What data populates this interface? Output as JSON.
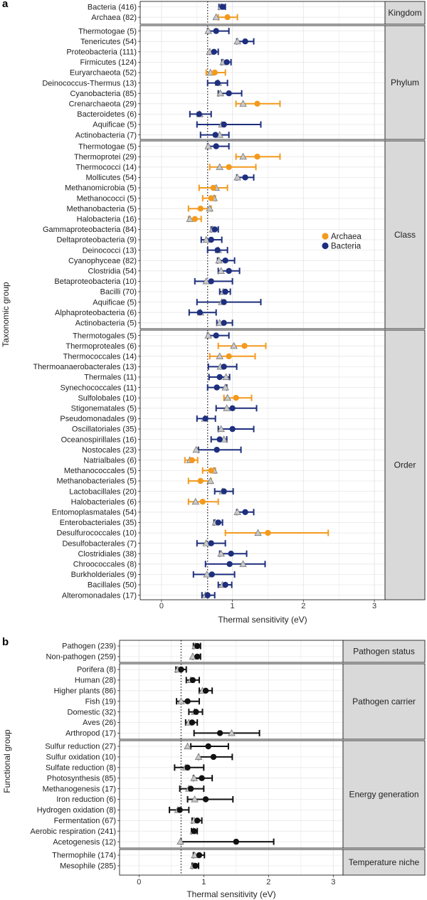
{
  "colors": {
    "archaea": "#f39a1e",
    "bacteria": "#1d2f7d",
    "black": "#111111",
    "triangle_fill": "#c8c8c8",
    "triangle_stroke": "#777777",
    "strip_bg": "#d9d9d9",
    "grid": "#e8e8e8",
    "frame": "#222222"
  },
  "chart_data": [
    {
      "type": "forest",
      "panel_label": "a",
      "xlabel": "Thermal sensitivity (eV)",
      "ylabel": "Taxonomic group",
      "xlim": [
        -0.3,
        3.15
      ],
      "xticks": [
        0,
        1,
        2,
        3
      ],
      "reference_line": 0.65,
      "legend": {
        "position": "right-center",
        "entries": [
          {
            "name": "Archaea",
            "color_key": "archaea"
          },
          {
            "name": "Bacteria",
            "color_key": "bacteria"
          }
        ]
      },
      "facets": [
        {
          "strip": "Kingdom",
          "rows": [
            {
              "label": "Bacteria (416)",
              "est": 0.86,
              "lo": 0.81,
              "hi": 0.9,
              "tri": 0.84,
              "group": "Bacteria"
            },
            {
              "label": "Archaea (82)",
              "est": 0.93,
              "lo": 0.8,
              "hi": 1.07,
              "tri": 0.77,
              "group": "Archaea"
            }
          ]
        },
        {
          "strip": "Phylum",
          "rows": [
            {
              "label": "Thermotogae (5)",
              "est": 0.77,
              "lo": 0.65,
              "hi": 0.95,
              "tri": 0.66,
              "group": "Bacteria"
            },
            {
              "label": "Tenericutes (54)",
              "est": 1.18,
              "lo": 1.06,
              "hi": 1.3,
              "tri": 1.07,
              "group": "Bacteria"
            },
            {
              "label": "Proteobacteria (111)",
              "est": 0.74,
              "lo": 0.68,
              "hi": 0.8,
              "tri": 0.68,
              "group": "Bacteria"
            },
            {
              "label": "Firmicutes (124)",
              "est": 0.92,
              "lo": 0.85,
              "hi": 0.98,
              "tri": 0.87,
              "group": "Bacteria"
            },
            {
              "label": "Euryarchaeota (52)",
              "est": 0.75,
              "lo": 0.63,
              "hi": 0.9,
              "tri": 0.69,
              "group": "Archaea"
            },
            {
              "label": "Deinococcus-Thermus (13)",
              "est": 0.79,
              "lo": 0.65,
              "hi": 0.93,
              "tri": 0.8,
              "group": "Bacteria"
            },
            {
              "label": "Cyanobacteria (85)",
              "est": 0.95,
              "lo": 0.8,
              "hi": 1.13,
              "tri": 0.83,
              "group": "Bacteria"
            },
            {
              "label": "Crenarchaeota (29)",
              "est": 1.35,
              "lo": 1.05,
              "hi": 1.67,
              "tri": 1.15,
              "group": "Archaea"
            },
            {
              "label": "Bacteroidetes (6)",
              "est": 0.53,
              "lo": 0.4,
              "hi": 0.7,
              "tri": 0.54,
              "group": "Bacteria"
            },
            {
              "label": "Aquificae (5)",
              "est": 0.88,
              "lo": 0.5,
              "hi": 1.4,
              "tri": 0.85,
              "group": "Bacteria"
            },
            {
              "label": "Actinobacteria (7)",
              "est": 0.76,
              "lo": 0.55,
              "hi": 0.95,
              "tri": 0.82,
              "group": "Bacteria"
            }
          ]
        },
        {
          "strip": "Class",
          "rows": [
            {
              "label": "Thermotogae (5)",
              "est": 0.77,
              "lo": 0.65,
              "hi": 0.95,
              "tri": 0.66,
              "group": "Bacteria"
            },
            {
              "label": "Thermoprotei (29)",
              "est": 1.35,
              "lo": 1.05,
              "hi": 1.67,
              "tri": 1.15,
              "group": "Archaea"
            },
            {
              "label": "Thermococci (14)",
              "est": 0.95,
              "lo": 0.68,
              "hi": 1.33,
              "tri": 0.82,
              "group": "Archaea"
            },
            {
              "label": "Mollicutes (54)",
              "est": 1.18,
              "lo": 1.06,
              "hi": 1.3,
              "tri": 1.07,
              "group": "Bacteria"
            },
            {
              "label": "Methanomicrobia (5)",
              "est": 0.73,
              "lo": 0.53,
              "hi": 0.93,
              "tri": 0.77,
              "group": "Archaea"
            },
            {
              "label": "Methanococci (5)",
              "est": 0.7,
              "lo": 0.58,
              "hi": 0.76,
              "tri": 0.74,
              "group": "Archaea"
            },
            {
              "label": "Methanobacteria (5)",
              "est": 0.55,
              "lo": 0.38,
              "hi": 0.7,
              "tri": 0.68,
              "group": "Archaea"
            },
            {
              "label": "Halobacteria (16)",
              "est": 0.47,
              "lo": 0.38,
              "hi": 0.56,
              "tri": 0.4,
              "group": "Archaea"
            },
            {
              "label": "Gammaproteobacteria (84)",
              "est": 0.75,
              "lo": 0.7,
              "hi": 0.8,
              "tri": 0.72,
              "group": "Bacteria"
            },
            {
              "label": "Deltaproteobacteria (9)",
              "est": 0.7,
              "lo": 0.56,
              "hi": 0.85,
              "tri": 0.63,
              "group": "Bacteria"
            },
            {
              "label": "Deinococci (13)",
              "est": 0.79,
              "lo": 0.65,
              "hi": 0.93,
              "tri": 0.8,
              "group": "Bacteria"
            },
            {
              "label": "Cyanophyceae (82)",
              "est": 0.9,
              "lo": 0.79,
              "hi": 1.03,
              "tri": 0.81,
              "group": "Bacteria"
            },
            {
              "label": "Clostridia (54)",
              "est": 0.95,
              "lo": 0.8,
              "hi": 1.1,
              "tri": 0.84,
              "group": "Bacteria"
            },
            {
              "label": "Betaproteobacteria (10)",
              "est": 0.7,
              "lo": 0.47,
              "hi": 1.0,
              "tri": 0.63,
              "group": "Bacteria"
            },
            {
              "label": "Bacilli (70)",
              "est": 0.9,
              "lo": 0.82,
              "hi": 0.97,
              "tri": 0.87,
              "group": "Bacteria"
            },
            {
              "label": "Aquificae (5)",
              "est": 0.88,
              "lo": 0.5,
              "hi": 1.4,
              "tri": 0.85,
              "group": "Bacteria"
            },
            {
              "label": "Alphaproteobacteria (6)",
              "est": 0.54,
              "lo": 0.39,
              "hi": 0.77,
              "tri": 0.55,
              "group": "Bacteria"
            },
            {
              "label": "Actinobacteria (5)",
              "est": 0.88,
              "lo": 0.78,
              "hi": 1.0,
              "tri": 0.82,
              "group": "Bacteria"
            }
          ]
        },
        {
          "strip": "Order",
          "rows": [
            {
              "label": "Thermotogales (5)",
              "est": 0.77,
              "lo": 0.65,
              "hi": 0.95,
              "tri": 0.66,
              "group": "Bacteria"
            },
            {
              "label": "Thermoproteales (6)",
              "est": 1.17,
              "lo": 0.8,
              "hi": 1.47,
              "tri": 1.02,
              "group": "Archaea"
            },
            {
              "label": "Thermococcales (14)",
              "est": 0.95,
              "lo": 0.68,
              "hi": 1.32,
              "tri": 0.82,
              "group": "Archaea"
            },
            {
              "label": "Thermoanaerobacterales (13)",
              "est": 0.88,
              "lo": 0.66,
              "hi": 1.06,
              "tri": 0.83,
              "group": "Bacteria"
            },
            {
              "label": "Thermales (11)",
              "est": 0.82,
              "lo": 0.67,
              "hi": 0.96,
              "tri": 0.91,
              "group": "Bacteria"
            },
            {
              "label": "Synechococcales (11)",
              "est": 0.78,
              "lo": 0.65,
              "hi": 0.92,
              "tri": 0.9,
              "group": "Bacteria"
            },
            {
              "label": "Sulfolobales (10)",
              "est": 1.05,
              "lo": 0.88,
              "hi": 1.27,
              "tri": 0.93,
              "group": "Archaea"
            },
            {
              "label": "Stigonematales (5)",
              "est": 1.0,
              "lo": 0.77,
              "hi": 1.34,
              "tri": 0.92,
              "group": "Bacteria"
            },
            {
              "label": "Pseudomonadales (9)",
              "est": 0.62,
              "lo": 0.5,
              "hi": 0.76,
              "tri": 0.61,
              "group": "Bacteria"
            },
            {
              "label": "Oscillatoriales (35)",
              "est": 1.0,
              "lo": 0.8,
              "hi": 1.3,
              "tri": 0.84,
              "group": "Bacteria"
            },
            {
              "label": "Oceanospirillales (16)",
              "est": 0.82,
              "lo": 0.7,
              "hi": 0.92,
              "tri": 0.88,
              "group": "Bacteria"
            },
            {
              "label": "Nostocales (23)",
              "est": 0.78,
              "lo": 0.52,
              "hi": 1.12,
              "tri": 0.49,
              "group": "Bacteria"
            },
            {
              "label": "Natrialbales (6)",
              "est": 0.43,
              "lo": 0.33,
              "hi": 0.51,
              "tri": 0.4,
              "group": "Archaea"
            },
            {
              "label": "Methanococcales (5)",
              "est": 0.7,
              "lo": 0.58,
              "hi": 0.76,
              "tri": 0.74,
              "group": "Archaea"
            },
            {
              "label": "Methanobacteriales (5)",
              "est": 0.55,
              "lo": 0.38,
              "hi": 0.7,
              "tri": 0.69,
              "group": "Archaea"
            },
            {
              "label": "Lactobacillales (20)",
              "est": 0.88,
              "lo": 0.75,
              "hi": 1.01,
              "tri": 0.86,
              "group": "Bacteria"
            },
            {
              "label": "Halobacteriales (6)",
              "est": 0.58,
              "lo": 0.38,
              "hi": 0.8,
              "tri": 0.48,
              "group": "Archaea"
            },
            {
              "label": "Entomoplasmatales (54)",
              "est": 1.18,
              "lo": 1.06,
              "hi": 1.3,
              "tri": 1.07,
              "group": "Bacteria"
            },
            {
              "label": "Enterobacteriales (35)",
              "est": 0.8,
              "lo": 0.74,
              "hi": 0.86,
              "tri": 0.76,
              "group": "Bacteria"
            },
            {
              "label": "Desulfurococcales (10)",
              "est": 1.5,
              "lo": 0.9,
              "hi": 2.35,
              "tri": 1.36,
              "group": "Archaea"
            },
            {
              "label": "Desulfobacterales (7)",
              "est": 0.7,
              "lo": 0.5,
              "hi": 0.9,
              "tri": 0.63,
              "group": "Bacteria"
            },
            {
              "label": "Clostridiales (38)",
              "est": 0.98,
              "lo": 0.82,
              "hi": 1.2,
              "tri": 0.84,
              "group": "Bacteria"
            },
            {
              "label": "Chroococcales (8)",
              "est": 0.96,
              "lo": 0.62,
              "hi": 1.46,
              "tri": 1.15,
              "group": "Bacteria"
            },
            {
              "label": "Burkholderiales (9)",
              "est": 0.71,
              "lo": 0.45,
              "hi": 1.03,
              "tri": 0.64,
              "group": "Bacteria"
            },
            {
              "label": "Bacillales (50)",
              "est": 0.9,
              "lo": 0.8,
              "hi": 0.99,
              "tri": 0.86,
              "group": "Bacteria"
            },
            {
              "label": "Alteromonadales (17)",
              "est": 0.65,
              "lo": 0.57,
              "hi": 0.75,
              "tri": 0.62,
              "group": "Bacteria"
            }
          ]
        }
      ]
    },
    {
      "type": "forest",
      "panel_label": "b",
      "xlabel": "Thermal sensitivity (eV)",
      "ylabel": "Functional group",
      "xlim": [
        -0.3,
        3.15
      ],
      "xticks": [
        0,
        1,
        2,
        3
      ],
      "reference_line": 0.65,
      "facets": [
        {
          "strip": "Pathogen status",
          "rows": [
            {
              "label": "Pathogen (239)",
              "est": 0.9,
              "lo": 0.84,
              "hi": 0.95,
              "tri": 0.87
            },
            {
              "label": "Non-pathogen (259)",
              "est": 0.9,
              "lo": 0.83,
              "hi": 0.95,
              "tri": 0.83
            }
          ]
        },
        {
          "strip": "Pathogen carrier",
          "rows": [
            {
              "label": "Porifera (8)",
              "est": 0.65,
              "lo": 0.57,
              "hi": 0.73,
              "tri": 0.6
            },
            {
              "label": "Human (28)",
              "est": 0.83,
              "lo": 0.73,
              "hi": 0.93,
              "tri": 0.8
            },
            {
              "label": "Higher plants (86)",
              "est": 1.03,
              "lo": 0.93,
              "hi": 1.13,
              "tri": 0.98
            },
            {
              "label": "Fish (19)",
              "est": 0.75,
              "lo": 0.58,
              "hi": 0.93,
              "tri": 0.65
            },
            {
              "label": "Domestic (32)",
              "est": 0.88,
              "lo": 0.77,
              "hi": 0.98,
              "tri": 0.86
            },
            {
              "label": "Aves (26)",
              "est": 0.82,
              "lo": 0.72,
              "hi": 0.9,
              "tri": 0.77
            },
            {
              "label": "Arthropod (17)",
              "est": 1.25,
              "lo": 0.85,
              "hi": 1.86,
              "tri": 1.43
            }
          ]
        },
        {
          "strip": "Energy generation",
          "rows": [
            {
              "label": "Sulfur reduction (27)",
              "est": 1.07,
              "lo": 0.8,
              "hi": 1.38,
              "tri": 0.75
            },
            {
              "label": "Sulfur oxidation (10)",
              "est": 1.15,
              "lo": 0.92,
              "hi": 1.44,
              "tri": 0.92
            },
            {
              "label": "Sulfate reduction (8)",
              "est": 0.75,
              "lo": 0.55,
              "hi": 1.0,
              "tri": 0.72
            },
            {
              "label": "Photosynthesis (85)",
              "est": 0.97,
              "lo": 0.84,
              "hi": 1.13,
              "tri": 0.85
            },
            {
              "label": "Methanogenesis (17)",
              "est": 0.8,
              "lo": 0.63,
              "hi": 1.0,
              "tri": 0.77
            },
            {
              "label": "Iron reduction (6)",
              "est": 1.03,
              "lo": 0.75,
              "hi": 1.45,
              "tri": 0.86
            },
            {
              "label": "Hydrogen oxidation (8)",
              "est": 0.63,
              "lo": 0.47,
              "hi": 0.77,
              "tri": 0.6
            },
            {
              "label": "Fermentation (67)",
              "est": 0.9,
              "lo": 0.82,
              "hi": 0.97,
              "tri": 0.85
            },
            {
              "label": "Aerobic respiration (241)",
              "est": 0.85,
              "lo": 0.81,
              "hi": 0.9,
              "tri": 0.84
            },
            {
              "label": "Acetogenesis (12)",
              "est": 1.5,
              "lo": 0.65,
              "hi": 2.08,
              "tri": 0.64
            }
          ]
        },
        {
          "strip": "Temperature niche",
          "rows": [
            {
              "label": "Thermophile (174)",
              "est": 0.93,
              "lo": 0.84,
              "hi": 1.01,
              "tri": 0.86
            },
            {
              "label": "Mesophile (285)",
              "est": 0.87,
              "lo": 0.82,
              "hi": 0.92,
              "tri": 0.84
            }
          ]
        }
      ]
    }
  ]
}
